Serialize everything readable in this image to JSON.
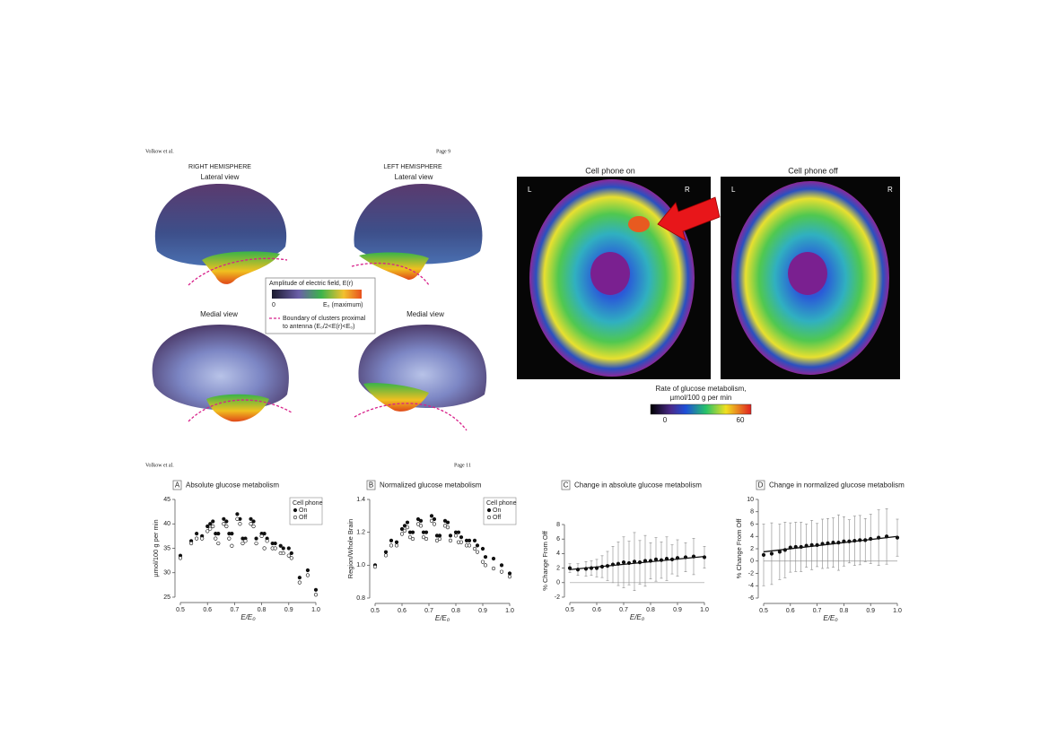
{
  "header_top": {
    "author": "Volkow et al.",
    "page": "Page 9"
  },
  "figure_field": {
    "right_hemisphere": "RIGHT HEMISPHERE",
    "left_hemisphere": "LEFT HEMISPHERE",
    "lateral_right": "Lateral view",
    "lateral_left": "Lateral view",
    "medial_right": "Medial view",
    "medial_left": "Medial view",
    "legend_title": "Amplitude of electric field, E(r)",
    "scale_min": "0",
    "scale_max": "E₀ (maximum)",
    "boundary_line1": "Boundary of clusters proximal",
    "boundary_line2": "to antenna (E₀/2<E(r)<E₀)"
  },
  "figure_pet": {
    "title_on": "Cell phone on",
    "title_off": "Cell phone off",
    "left_on": "L",
    "right_on": "R",
    "left_off": "L",
    "right_off": "R",
    "scale_title_line1": "Rate of glucose metabolism,",
    "scale_title_line2": "µmol/100 g per min",
    "scale_min": "0",
    "scale_max": "60"
  },
  "header_bottom": {
    "author": "Volkow et al.",
    "page": "Page 11"
  },
  "chart_data": [
    {
      "type": "scatter",
      "panel": "A",
      "title": "Absolute glucose metabolism",
      "xlabel": "E/E₀",
      "ylabel": "µmol/100 g per min",
      "legend_title": "Cell phone",
      "xlim": [
        0.5,
        1.0
      ],
      "xticks": [
        0.5,
        0.6,
        0.7,
        0.8,
        0.9,
        {
          "value": 1.0,
          "label": "1.0"
        }
      ],
      "ylim": [
        25,
        45
      ],
      "yticks": [
        25,
        30,
        35,
        40,
        45
      ],
      "x": [
        0.5,
        0.54,
        0.56,
        0.58,
        0.6,
        0.61,
        0.62,
        0.63,
        0.64,
        0.66,
        0.67,
        0.68,
        0.69,
        0.71,
        0.72,
        0.73,
        0.74,
        0.76,
        0.77,
        0.78,
        0.8,
        0.81,
        0.82,
        0.84,
        0.85,
        0.87,
        0.88,
        0.9,
        0.91,
        0.94,
        0.97,
        1.0
      ],
      "series": [
        {
          "name": "On",
          "color": "#111111",
          "values": [
            33.5,
            36.5,
            38,
            37.5,
            39.5,
            40,
            40.5,
            38,
            38,
            41,
            40.5,
            38,
            38,
            42,
            41,
            37,
            37,
            41,
            40.5,
            37,
            38,
            38,
            37,
            36,
            36,
            35.5,
            35,
            35,
            34,
            29,
            30.5,
            26.5
          ]
        },
        {
          "name": "Off",
          "color": "#ffffff",
          "values": [
            33,
            36,
            37,
            37,
            38.5,
            39,
            39.5,
            37,
            36,
            40,
            39.5,
            37,
            35.5,
            41,
            40,
            36,
            36.5,
            40,
            39.5,
            36,
            37.5,
            35,
            36.5,
            35,
            35,
            34,
            34,
            33.5,
            33,
            28,
            29.5,
            25.5
          ]
        }
      ]
    },
    {
      "type": "scatter",
      "panel": "B",
      "title": "Normalized glucose metabolism",
      "xlabel": "E/E₀",
      "ylabel": "Region/Whole Brain",
      "legend_title": "Cell phone",
      "xlim": [
        0.5,
        1.0
      ],
      "xticks": [
        0.5,
        0.6,
        0.7,
        0.8,
        0.9,
        {
          "value": 1.0,
          "label": "1.0"
        }
      ],
      "ylim": [
        0.8,
        1.4
      ],
      "yticks": [
        0.8,
        {
          "value": 1.0,
          "label": "1.0"
        },
        1.2,
        1.4
      ],
      "x": [
        0.5,
        0.54,
        0.56,
        0.58,
        0.6,
        0.61,
        0.62,
        0.63,
        0.64,
        0.66,
        0.67,
        0.68,
        0.69,
        0.71,
        0.72,
        0.73,
        0.74,
        0.76,
        0.77,
        0.78,
        0.8,
        0.81,
        0.82,
        0.84,
        0.85,
        0.87,
        0.88,
        0.9,
        0.91,
        0.94,
        0.97,
        1.0
      ],
      "series": [
        {
          "name": "On",
          "color": "#111111",
          "values": [
            1.0,
            1.08,
            1.15,
            1.14,
            1.22,
            1.24,
            1.26,
            1.2,
            1.2,
            1.28,
            1.27,
            1.2,
            1.2,
            1.3,
            1.28,
            1.18,
            1.18,
            1.27,
            1.26,
            1.18,
            1.2,
            1.2,
            1.17,
            1.15,
            1.15,
            1.15,
            1.12,
            1.1,
            1.05,
            1.04,
            1.0,
            0.95
          ]
        },
        {
          "name": "Off",
          "color": "#ffffff",
          "values": [
            0.99,
            1.06,
            1.12,
            1.12,
            1.19,
            1.21,
            1.23,
            1.17,
            1.16,
            1.25,
            1.24,
            1.17,
            1.16,
            1.27,
            1.25,
            1.15,
            1.16,
            1.24,
            1.23,
            1.15,
            1.18,
            1.14,
            1.14,
            1.12,
            1.12,
            1.1,
            1.08,
            1.02,
            1.0,
            0.98,
            0.96,
            0.93
          ]
        }
      ]
    },
    {
      "type": "scatter",
      "panel": "C",
      "title": "Change in absolute glucose metabolism",
      "xlabel": "E/E₀",
      "ylabel": "% Change From Off",
      "xlim": [
        0.5,
        1.0
      ],
      "xticks": [
        0.5,
        0.6,
        0.7,
        0.8,
        0.9,
        {
          "value": 1.0,
          "label": "1.0"
        }
      ],
      "ylim": [
        -2,
        8
      ],
      "yticks": [
        -2,
        0,
        2,
        4,
        6,
        8
      ],
      "reference_line": 0,
      "x": [
        0.5,
        0.53,
        0.56,
        0.58,
        0.6,
        0.62,
        0.64,
        0.66,
        0.68,
        0.7,
        0.72,
        0.74,
        0.76,
        0.78,
        0.8,
        0.82,
        0.84,
        0.86,
        0.88,
        0.9,
        0.93,
        0.96,
        1.0
      ],
      "series": [
        {
          "color": "#111111",
          "values": [
            2,
            1.8,
            1.9,
            2,
            2,
            2.2,
            2.3,
            2.5,
            2.6,
            2.8,
            2.7,
            2.9,
            2.8,
            3,
            3,
            3.2,
            3.1,
            3.3,
            3.2,
            3.4,
            3.5,
            3.6,
            3.5
          ],
          "errors": [
            0.6,
            0.8,
            1,
            1,
            1.2,
            1.5,
            2,
            2.5,
            3,
            3.5,
            3,
            4,
            3,
            3.5,
            2.5,
            3,
            2.5,
            3,
            2,
            2.5,
            2,
            2.5,
            1.5
          ]
        }
      ],
      "fit": {
        "x": [
          0.5,
          1.0
        ],
        "values": [
          1.8,
          3.6
        ]
      }
    },
    {
      "type": "scatter",
      "panel": "D",
      "title": "Change in normalized glucose metabolism",
      "xlabel": "E/E₀",
      "ylabel": "% Change From Off",
      "xlim": [
        0.5,
        1.0
      ],
      "xticks": [
        0.5,
        0.6,
        0.7,
        0.8,
        0.9,
        {
          "value": 1.0,
          "label": "1.0"
        }
      ],
      "ylim": [
        -6,
        10
      ],
      "yticks": [
        -6,
        -4,
        -2,
        0,
        2,
        4,
        6,
        8,
        10
      ],
      "reference_line": 0,
      "x": [
        0.5,
        0.53,
        0.56,
        0.58,
        0.6,
        0.62,
        0.64,
        0.66,
        0.68,
        0.7,
        0.72,
        0.74,
        0.76,
        0.78,
        0.8,
        0.82,
        0.84,
        0.86,
        0.88,
        0.9,
        0.93,
        0.96,
        1.0
      ],
      "series": [
        {
          "color": "#111111",
          "values": [
            1,
            1.2,
            1.5,
            1.8,
            2.2,
            2.3,
            2.3,
            2.5,
            2.6,
            2.6,
            2.8,
            2.9,
            3,
            3,
            3.2,
            3.2,
            3.3,
            3.4,
            3.4,
            3.6,
            3.8,
            4,
            3.8
          ],
          "errors": [
            5,
            5,
            4.5,
            4.5,
            4,
            4,
            4,
            3.5,
            4,
            3.5,
            4,
            4,
            4,
            4.5,
            4,
            3.5,
            4,
            4,
            3.5,
            4,
            4.5,
            4.5,
            3
          ]
        }
      ],
      "fit": {
        "x": [
          0.5,
          1.0
        ],
        "values": [
          1.5,
          4.0
        ]
      }
    }
  ]
}
